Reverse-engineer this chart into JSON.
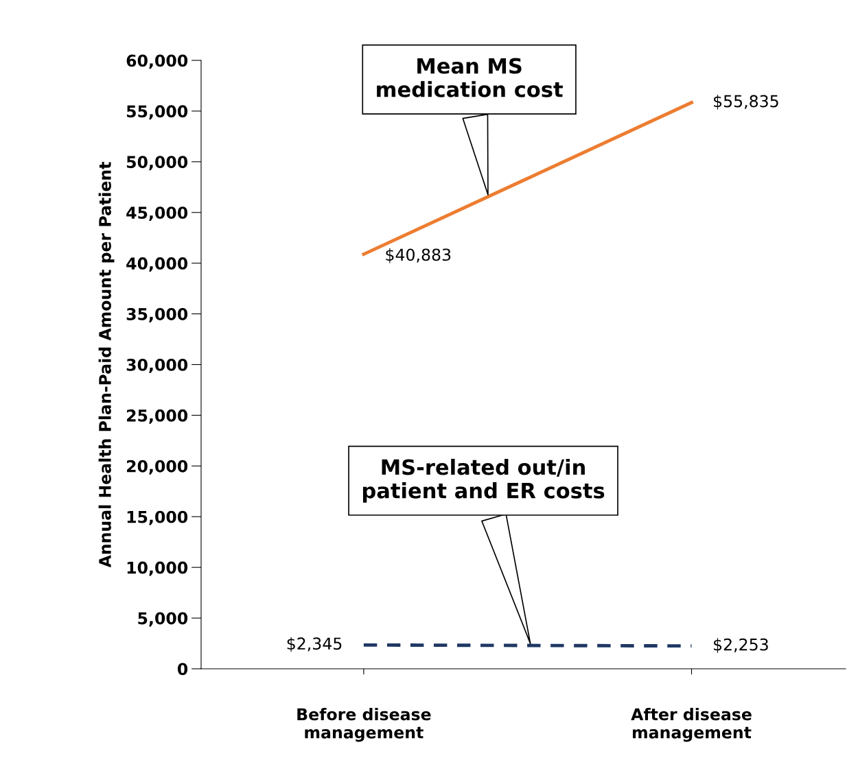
{
  "chart_data": {
    "type": "line",
    "ylabel": "Annual Health Plan-Paid Amount per Patient",
    "categories": [
      "Before disease\nmanagement",
      "After disease\nmanagement"
    ],
    "series": [
      {
        "name": "Mean MS\nmedication cost",
        "color": "#ed7d31",
        "values": [
          40883,
          55835
        ],
        "value_labels": [
          "$40,883",
          "$55,835"
        ],
        "line_style": "solid"
      },
      {
        "name": "MS-related out/in\npatient and ER costs",
        "color": "#1f3864",
        "values": [
          2345,
          2253
        ],
        "value_labels": [
          "$2,345",
          "$2,253"
        ],
        "line_style": "dashed"
      }
    ],
    "ylim": [
      0,
      60000
    ],
    "yticks": [
      {
        "value": 0,
        "label": "0"
      },
      {
        "value": 5000,
        "label": "5,000"
      },
      {
        "value": 10000,
        "label": "10,000"
      },
      {
        "value": 15000,
        "label": "15,000"
      },
      {
        "value": 20000,
        "label": "20,000"
      },
      {
        "value": 25000,
        "label": "25,000"
      },
      {
        "value": 30000,
        "label": "30,000"
      },
      {
        "value": 35000,
        "label": "35,000"
      },
      {
        "value": 40000,
        "label": "40,000"
      },
      {
        "value": 45000,
        "label": "45,000"
      },
      {
        "value": 50000,
        "label": "50,000"
      },
      {
        "value": 55000,
        "label": "55,000"
      },
      {
        "value": 60000,
        "label": "60,000"
      }
    ],
    "grid": false,
    "legend": false,
    "marker": "none"
  }
}
